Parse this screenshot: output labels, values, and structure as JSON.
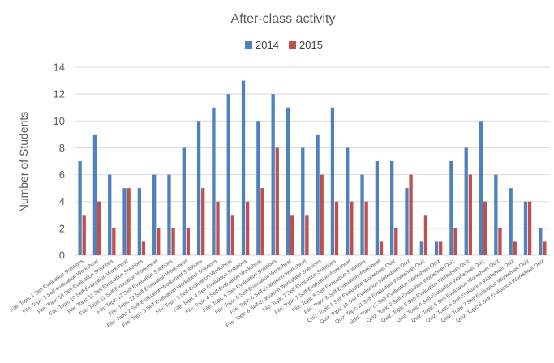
{
  "chart_data": {
    "type": "bar",
    "title": "After-class activity",
    "xlabel": "",
    "ylabel": "Number of Students",
    "ylim": [
      0,
      14
    ],
    "yticks": [
      0,
      2,
      4,
      6,
      8,
      10,
      12,
      14
    ],
    "grid": true,
    "legend": "top",
    "categories": [
      "File: Topic 1 Self Evaluation Solutions",
      "File: Topic 1 Self-evaluation Worksheet",
      "File: Topic 10 Self Evaluation Solutions",
      "File: Topic 10 Self-Evaluation Worksheet",
      "File: Topic 11 Self Evaluation Solutions",
      "File: Topic 11 Self-Evaluation Worksheet",
      "File: Topic 12 Self-Evaluation Solutions",
      "File: Topic 12 Self-Evaluation Worksheet",
      "File: Topic 2 Self-Evaluation Worksheet Solutions",
      "File: Topic 3 Self Evaluation Worksheet Solutions",
      "File: Topic 3 Self-Evaluation Worksheet",
      "File: Topic 4 Self Evaluation Solutions",
      "File: Topic 4 Self-Evaluation Worksheet",
      "File: Topic 5 Self-Evaluation Solutions",
      "File: Topic 5 Self-Evaluation Worksheet",
      "File: Topic 6 Self-Evaluation Worksheet",
      "File: Topic 6 Self-Evaluation Worksheet Solutions",
      "File: Topic 7 Self-Evaluation Solutions",
      "File: Topic 7 Self-Evaluation Worksheet",
      "File: Topic 8 Self-Evaluation Solutions",
      "File: Topic 8 Self-Evaluation Worksheet",
      "Quiz: Topic 1 Self Evaluation Worksheet Quiz",
      "Quiz: Topic 10 Self Evaluation Worksheet Quiz",
      "Quiz: Topic 11 Self Evaluation Worksheet Quiz",
      "Quiz: Topic 12 Self-Evaluation Worksheet Quiz",
      "Quiz: Topic 2 Self-Evaluation Worksheet Quiz",
      "Quiz: Topic 3 Self-Evaluation Worksheet Quiz",
      "Quiz: Topic 4 Self-Evaluation Worksheet Quiz",
      "Quiz: Topic 5 Self Evaluation Worksheet Quiz",
      "Quiz: Topic 6 Self-Evaluation Worksheet Quiz",
      "Quiz: Topic 7 Self Evaluation Worksheet Quiz",
      "Quiz: Topic 8 Self Evaluation Worksheet Quiz"
    ],
    "series": [
      {
        "name": "2014",
        "color": "#4f81bd",
        "values": [
          7,
          9,
          6,
          5,
          5,
          6,
          6,
          8,
          10,
          11,
          12,
          13,
          10,
          12,
          11,
          8,
          9,
          11,
          8,
          6,
          7,
          7,
          5,
          1,
          1,
          7,
          8,
          10,
          6,
          5,
          4,
          2
        ]
      },
      {
        "name": "2015",
        "color": "#c0504d",
        "values": [
          3,
          4,
          2,
          5,
          1,
          2,
          2,
          2,
          5,
          4,
          3,
          4,
          5,
          8,
          3,
          3,
          6,
          4,
          4,
          4,
          1,
          2,
          6,
          3,
          1,
          2,
          6,
          4,
          2,
          1,
          4,
          1
        ]
      }
    ]
  }
}
